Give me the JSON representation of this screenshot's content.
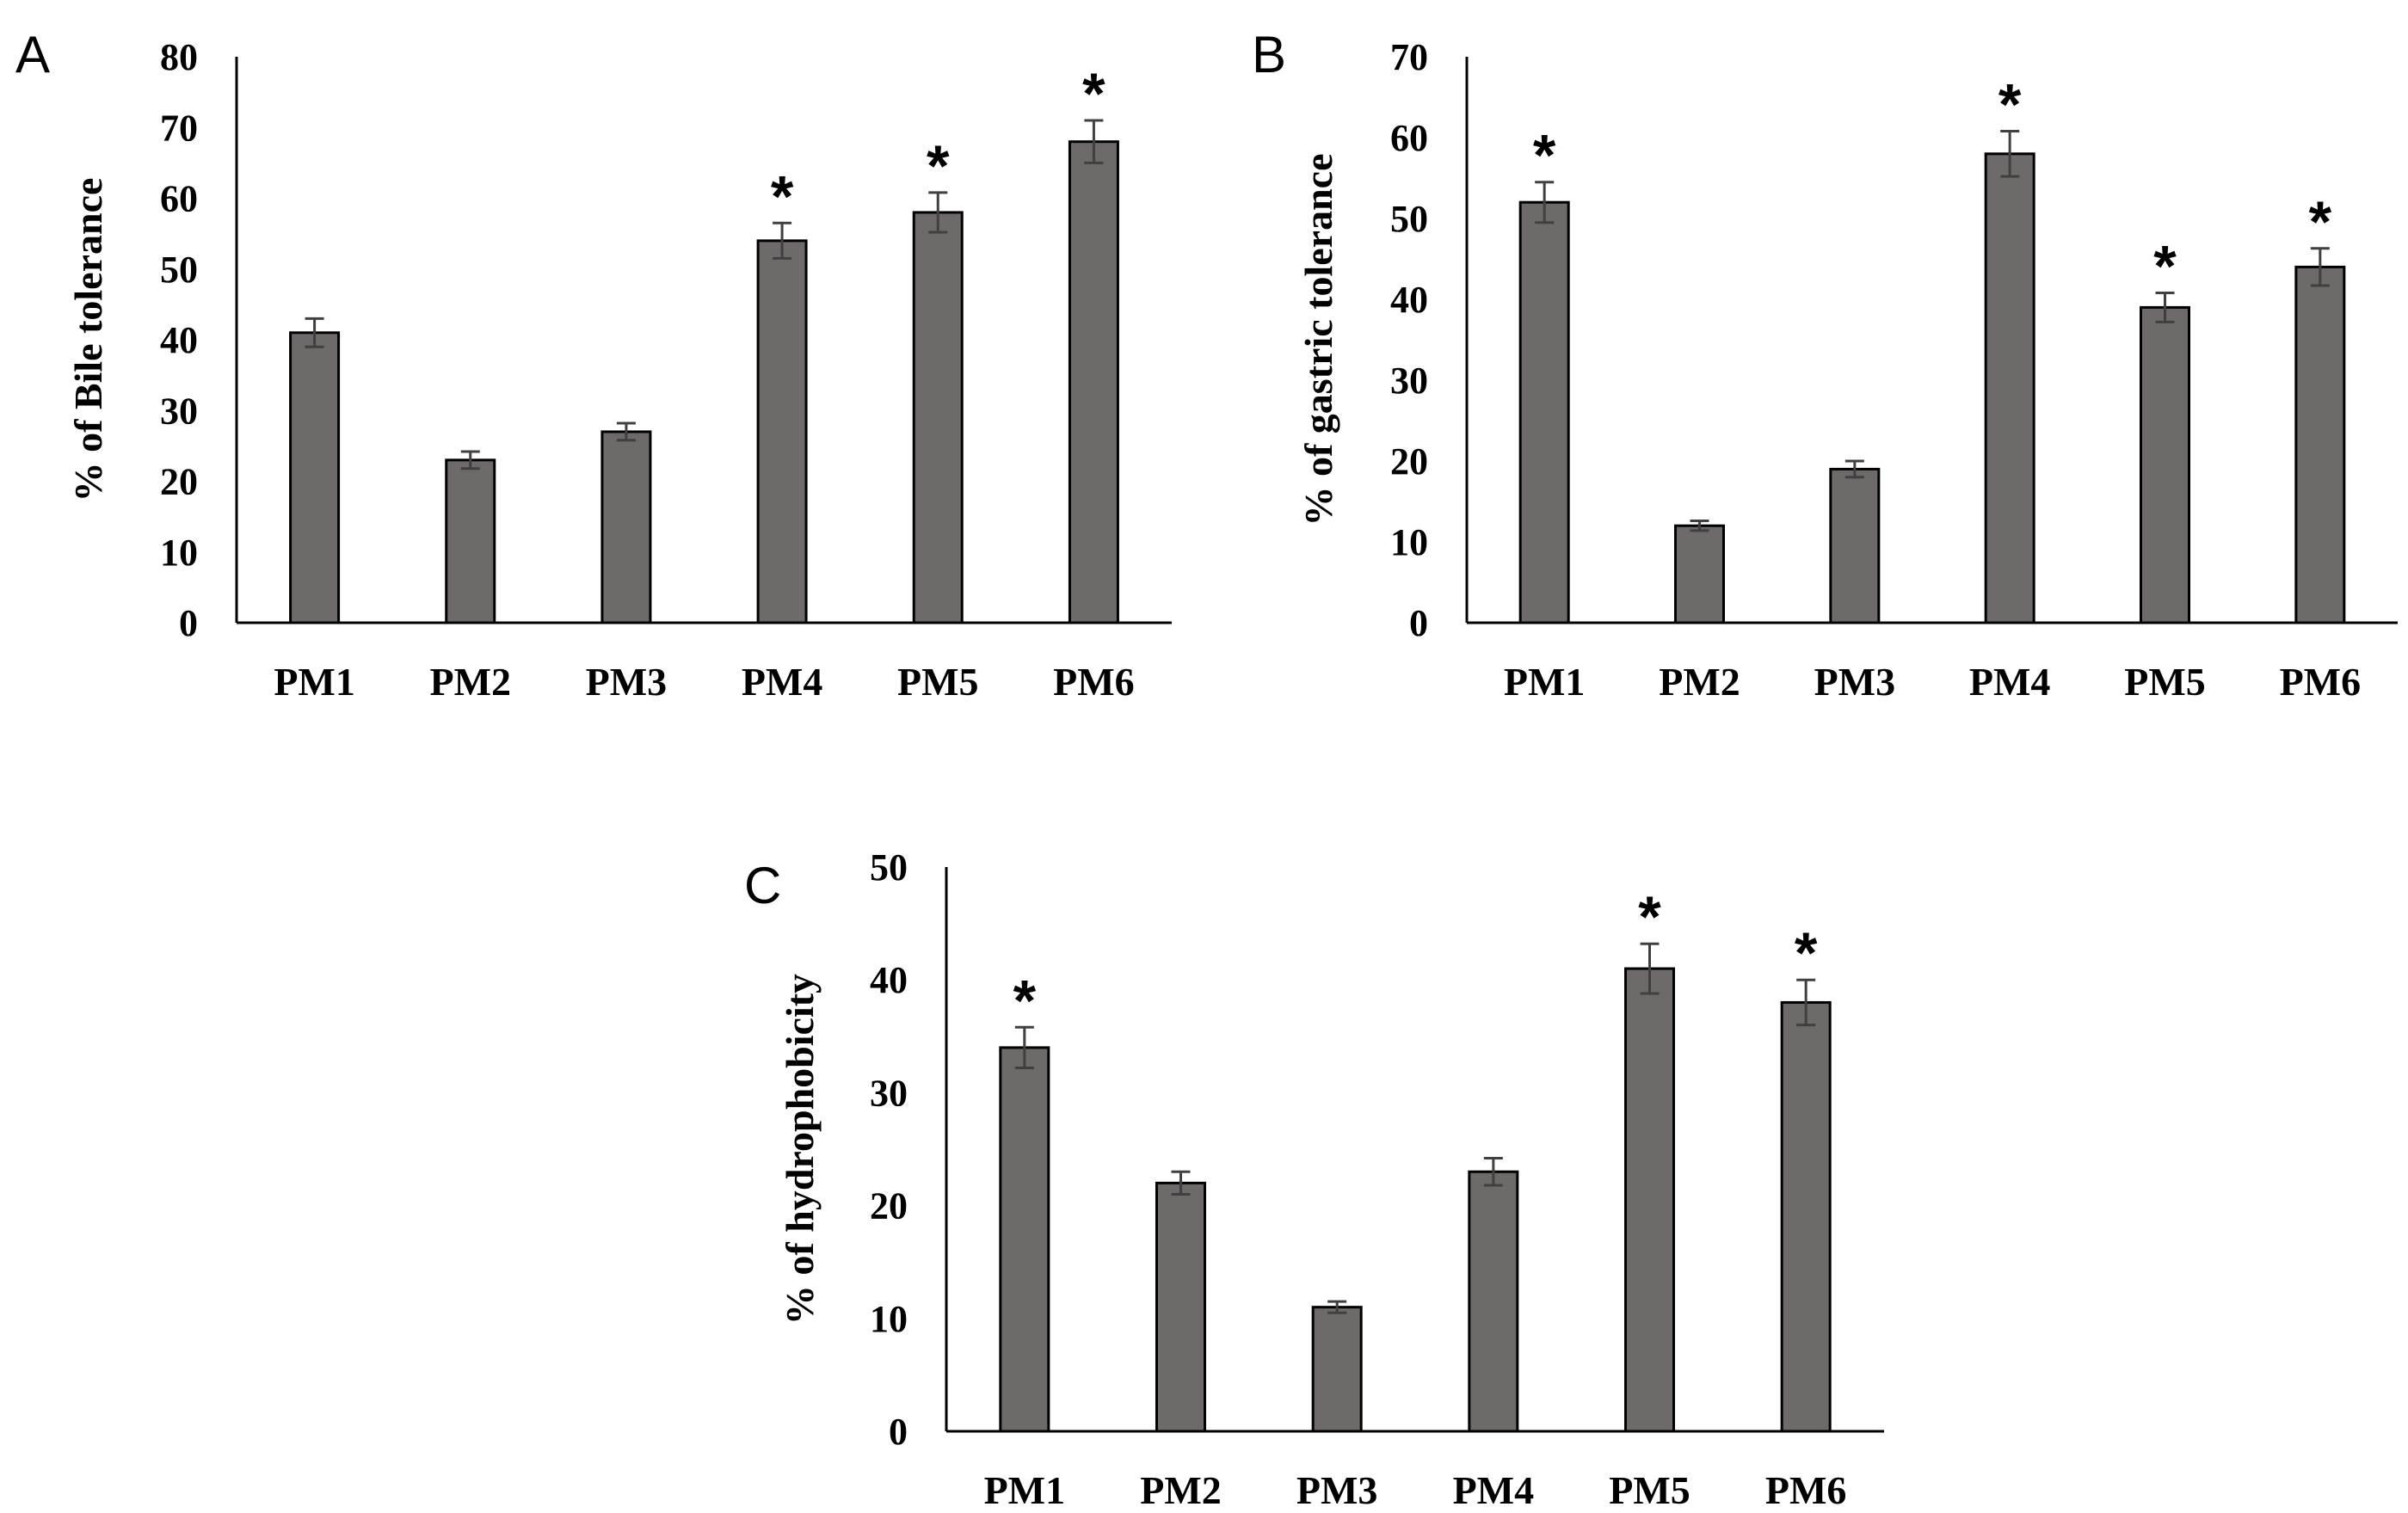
{
  "chart_data": [
    {
      "panel": "A",
      "type": "bar",
      "title": "",
      "xlabel": "",
      "ylabel": "% of Bile tolerance",
      "ylim": [
        0,
        80
      ],
      "yticks": [
        0,
        10,
        20,
        30,
        40,
        50,
        60,
        70,
        80
      ],
      "categories": [
        "PM1",
        "PM2",
        "PM3",
        "PM4",
        "PM5",
        "PM6"
      ],
      "values": [
        41,
        23,
        27,
        54,
        58,
        68
      ],
      "errors": [
        2,
        1.2,
        1.2,
        2.5,
        2.8,
        3
      ],
      "significant": [
        false,
        false,
        false,
        true,
        true,
        true
      ],
      "marker": "*",
      "color": "#6e6a69"
    },
    {
      "panel": "B",
      "type": "bar",
      "title": "",
      "xlabel": "",
      "ylabel": "% of gastric tolerance",
      "ylim": [
        0,
        70
      ],
      "yticks": [
        0,
        10,
        20,
        30,
        40,
        50,
        60,
        70
      ],
      "categories": [
        "PM1",
        "PM2",
        "PM3",
        "PM4",
        "PM5",
        "PM6"
      ],
      "values": [
        52,
        12,
        19,
        58,
        39,
        44
      ],
      "errors": [
        2.5,
        0.6,
        1,
        2.8,
        1.8,
        2.3
      ],
      "significant": [
        true,
        false,
        false,
        true,
        true,
        true
      ],
      "marker": "*",
      "color": "#6e6a69"
    },
    {
      "panel": "C",
      "type": "bar",
      "title": "",
      "xlabel": "",
      "ylabel": "% of hydrophobicity",
      "ylim": [
        0,
        50
      ],
      "yticks": [
        0,
        10,
        20,
        30,
        40,
        50
      ],
      "categories": [
        "PM1",
        "PM2",
        "PM3",
        "PM4",
        "PM5",
        "PM6"
      ],
      "values": [
        34,
        22,
        11,
        23,
        41,
        38
      ],
      "errors": [
        1.8,
        1,
        0.5,
        1.2,
        2.2,
        2
      ],
      "significant": [
        true,
        false,
        false,
        false,
        true,
        true
      ],
      "marker": "*",
      "color": "#6e6a69"
    }
  ]
}
